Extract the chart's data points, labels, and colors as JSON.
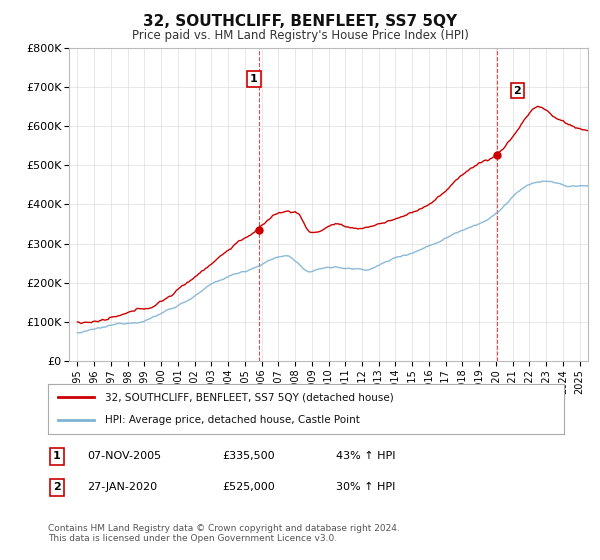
{
  "title": "32, SOUTHCLIFF, BENFLEET, SS7 5QY",
  "subtitle": "Price paid vs. HM Land Registry's House Price Index (HPI)",
  "legend_line1": "32, SOUTHCLIFF, BENFLEET, SS7 5QY (detached house)",
  "legend_line2": "HPI: Average price, detached house, Castle Point",
  "footnote": "Contains HM Land Registry data © Crown copyright and database right 2024.\nThis data is licensed under the Open Government Licence v3.0.",
  "sale1_label": "1",
  "sale1_date": "07-NOV-2005",
  "sale1_price": "£335,500",
  "sale1_pct": "43% ↑ HPI",
  "sale2_label": "2",
  "sale2_date": "27-JAN-2020",
  "sale2_price": "£525,000",
  "sale2_pct": "30% ↑ HPI",
  "sale1_x": 2005.85,
  "sale1_y": 335500,
  "sale2_x": 2020.07,
  "sale2_y": 525000,
  "ylim": [
    0,
    800000
  ],
  "xlim": [
    1994.5,
    2025.5
  ],
  "red_color": "#cc0000",
  "blue_color": "#7fb3d3",
  "background_color": "#ffffff",
  "grid_color": "#dddddd"
}
